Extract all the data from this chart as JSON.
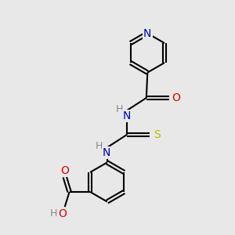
{
  "background_color": "#e8e8e8",
  "bond_color": "#000000",
  "atom_colors": {
    "N": "#0000bb",
    "O": "#dd0000",
    "S": "#bbbb00",
    "H": "#888888",
    "C": "#000000"
  },
  "figsize": [
    3.0,
    3.0
  ],
  "dpi": 100
}
